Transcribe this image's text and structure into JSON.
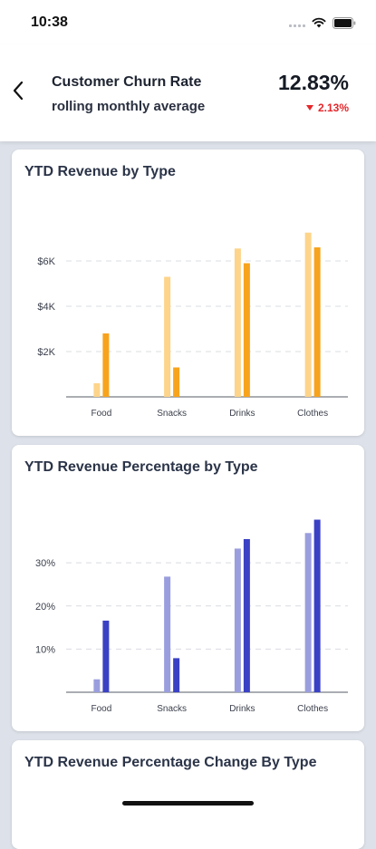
{
  "status": {
    "time": "10:38"
  },
  "header": {
    "title": "Customer Churn Rate",
    "subtitle": "rolling monthly average",
    "metric_value": "12.83%",
    "metric_change": "2.13%",
    "change_direction": "down",
    "change_color": "#e5262a"
  },
  "charts": [
    {
      "title": "YTD Revenue by Type"
    },
    {
      "title": "YTD Revenue Percentage by Type"
    },
    {
      "title": "YTD Revenue Percentage Change By Type"
    }
  ],
  "chart_data": [
    {
      "type": "bar",
      "title": "YTD Revenue by Type",
      "categories": [
        "Food",
        "Snacks",
        "Drinks",
        "Clothes"
      ],
      "series": [
        {
          "values": [
            600,
            5300,
            6550,
            7250
          ],
          "color": "#fdd48a"
        },
        {
          "values": [
            2800,
            1300,
            5900,
            6600
          ],
          "color": "#f7a31c"
        }
      ],
      "y_ticks": [
        2000,
        4000,
        6000
      ],
      "y_tick_labels": [
        "$2K",
        "$4K",
        "$6K"
      ],
      "ylim": [
        0,
        8000
      ],
      "grid": "dashed horizontal"
    },
    {
      "type": "bar",
      "title": "YTD Revenue Percentage by Type",
      "categories": [
        "Food",
        "Snacks",
        "Drinks",
        "Clothes"
      ],
      "series": [
        {
          "values": [
            3,
            26.8,
            33.3,
            36.9
          ],
          "color": "#9a9ede"
        },
        {
          "values": [
            16.6,
            7.9,
            35.5,
            40
          ],
          "color": "#3a41c4"
        }
      ],
      "y_ticks": [
        10,
        20,
        30
      ],
      "y_tick_labels": [
        "10%",
        "20%",
        "30%"
      ],
      "ylim": [
        0,
        42
      ],
      "grid": "dashed horizontal"
    }
  ]
}
